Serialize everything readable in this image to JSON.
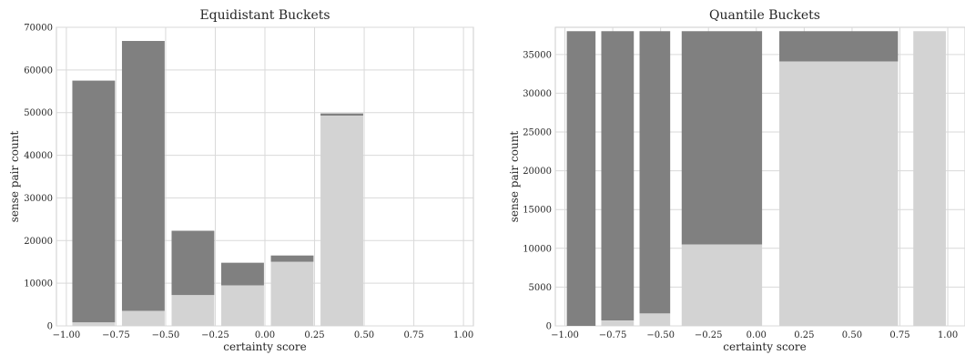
{
  "chart_data": [
    {
      "type": "bar",
      "title": "Equidistant Buckets",
      "xlabel": "certainty score",
      "ylabel": "sense pair count",
      "xlim": [
        -1.05,
        1.05
      ],
      "ylim": [
        0,
        70000
      ],
      "xticks": [
        -1.0,
        -0.75,
        -0.5,
        -0.25,
        0.0,
        0.25,
        0.5,
        0.75,
        1.0
      ],
      "xtick_labels": [
        "−1.00",
        "−0.75",
        "−0.50",
        "−0.25",
        "0.00",
        "0.25",
        "0.50",
        "0.75",
        "1.00"
      ],
      "yticks": [
        0,
        10000,
        20000,
        30000,
        40000,
        50000,
        60000,
        70000
      ],
      "ytick_labels": [
        "0",
        "10000",
        "20000",
        "30000",
        "40000",
        "50000",
        "60000",
        "70000"
      ],
      "grid": true,
      "bars": [
        {
          "x0": -0.97,
          "x1": -0.755,
          "light": 800,
          "total": 57500
        },
        {
          "x0": -0.72,
          "x1": -0.505,
          "light": 3500,
          "total": 66800
        },
        {
          "x0": -0.47,
          "x1": -0.255,
          "light": 7200,
          "total": 22300
        },
        {
          "x0": -0.22,
          "x1": -0.005,
          "light": 9500,
          "total": 14800
        },
        {
          "x0": 0.03,
          "x1": 0.245,
          "light": 15000,
          "total": 16500
        },
        {
          "x0": 0.28,
          "x1": 0.495,
          "light": 49300,
          "total": 49800
        }
      ]
    },
    {
      "type": "bar",
      "title": "Quantile Buckets",
      "xlabel": "certainty score",
      "ylabel": "sense pair count",
      "xlim": [
        -1.05,
        1.09
      ],
      "ylim": [
        0,
        38500
      ],
      "xticks": [
        -1.0,
        -0.75,
        -0.5,
        -0.25,
        0.0,
        0.25,
        0.5,
        0.75,
        1.0
      ],
      "xtick_labels": [
        "−1.00",
        "−0.75",
        "−0.50",
        "−0.25",
        "0.00",
        "0.25",
        "0.50",
        "0.75",
        "1.00"
      ],
      "yticks": [
        0,
        5000,
        10000,
        15000,
        20000,
        25000,
        30000,
        35000
      ],
      "ytick_labels": [
        "0",
        "5000",
        "10000",
        "15000",
        "20000",
        "25000",
        "30000",
        "35000"
      ],
      "grid": true,
      "bars": [
        {
          "x0": -0.99,
          "x1": -0.84,
          "light": 0,
          "total": 38000
        },
        {
          "x0": -0.81,
          "x1": -0.64,
          "light": 700,
          "total": 38000
        },
        {
          "x0": -0.61,
          "x1": -0.45,
          "light": 1600,
          "total": 38000
        },
        {
          "x0": -0.39,
          "x1": 0.03,
          "light": 10500,
          "total": 38000
        },
        {
          "x0": 0.12,
          "x1": 0.74,
          "light": 34100,
          "total": 38000
        },
        {
          "x0": 0.82,
          "x1": 0.99,
          "light": 38000,
          "total": 38000
        }
      ]
    }
  ],
  "colors": {
    "dark": "#808080",
    "light": "#d3d3d3"
  }
}
